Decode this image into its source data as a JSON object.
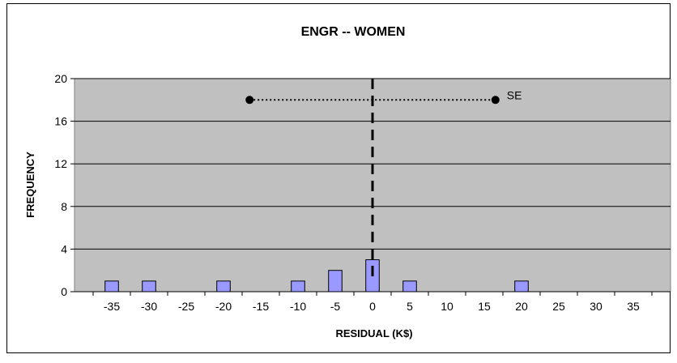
{
  "chart_data": {
    "type": "bar",
    "title": "ENGR -- WOMEN",
    "xlabel": "RESIDUAL (K$)",
    "ylabel": "FREQUENCY",
    "ylim": [
      0,
      20
    ],
    "xlim": [
      -40,
      40
    ],
    "yticks": [
      "0",
      "4",
      "8",
      "12",
      "16",
      "20"
    ],
    "xticks": [
      "-35",
      "-30",
      "-25",
      "-20",
      "-15",
      "-10",
      "-5",
      "0",
      "5",
      "10",
      "15",
      "20",
      "25",
      "30",
      "35"
    ],
    "x": [
      -35,
      -30,
      -20,
      -10,
      -5,
      0,
      5,
      20
    ],
    "values": [
      1,
      1,
      1,
      1,
      2,
      3,
      1,
      1
    ],
    "bar_color": "#9999ff",
    "plot_background": "#c0c0c0",
    "grid": true,
    "reference_line": {
      "x": 0,
      "style": "dashed"
    },
    "se_interval": {
      "label": "SE",
      "from": -16.5,
      "to": 16.5,
      "y": 18
    }
  }
}
